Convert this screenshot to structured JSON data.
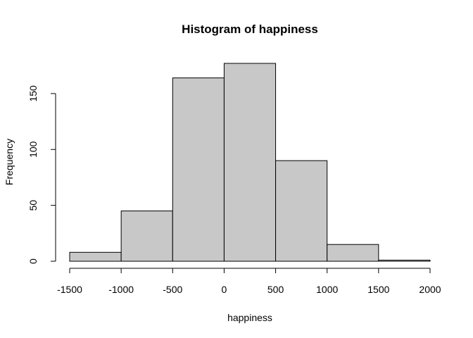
{
  "chart_data": {
    "type": "bar",
    "title": "Histogram of happiness",
    "xlabel": "happiness",
    "ylabel": "Frequency",
    "bins": [
      {
        "from": -1500,
        "to": -1000,
        "value": 8
      },
      {
        "from": -1000,
        "to": -500,
        "value": 45
      },
      {
        "from": -500,
        "to": 0,
        "value": 164
      },
      {
        "from": 0,
        "to": 500,
        "value": 177
      },
      {
        "from": 500,
        "to": 1000,
        "value": 90
      },
      {
        "from": 1000,
        "to": 1500,
        "value": 15
      },
      {
        "from": 1500,
        "to": 2000,
        "value": 1
      }
    ],
    "x_ticks": [
      "-1500",
      "-1000",
      "-500",
      "0",
      "500",
      "1000",
      "1500",
      "2000"
    ],
    "y_ticks": [
      "0",
      "50",
      "100",
      "150"
    ],
    "xlim": [
      -1500,
      2000
    ],
    "ylim": [
      0,
      177
    ],
    "grid": false,
    "bar_color": "#c8c8c8"
  }
}
